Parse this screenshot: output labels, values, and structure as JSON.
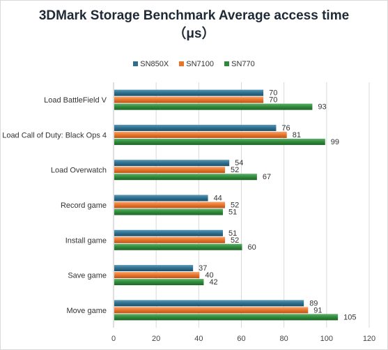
{
  "chart_data": {
    "type": "bar",
    "orientation": "horizontal",
    "title_line1": "3DMark Storage Benchmark  Average access time",
    "title_line2": "（μs）",
    "categories": [
      "Load BattleField V",
      "Load Call of Duty: Black Ops 4",
      "Load Overwatch",
      "Record game",
      "Install game",
      "Save game",
      "Move game"
    ],
    "series": [
      {
        "name": "SN850X",
        "color": "#2e6f8e",
        "values": [
          70,
          76,
          54,
          44,
          51,
          37,
          89
        ]
      },
      {
        "name": "SN7100",
        "color": "#e8742a",
        "values": [
          70,
          81,
          52,
          52,
          52,
          40,
          91
        ]
      },
      {
        "name": "SN770",
        "color": "#2f8a3a",
        "values": [
          93,
          99,
          67,
          51,
          60,
          42,
          105
        ]
      }
    ],
    "xlim": [
      0,
      120
    ],
    "xticks": [
      0,
      20,
      40,
      60,
      80,
      100,
      120
    ],
    "grid": true,
    "legend_position": "top"
  }
}
